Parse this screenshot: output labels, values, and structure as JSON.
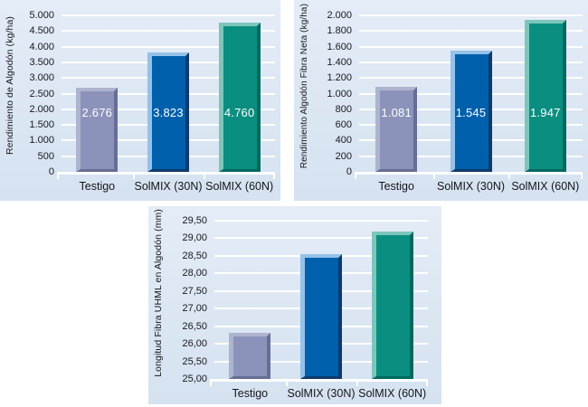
{
  "page": {
    "background": "#ffffff"
  },
  "palette": {
    "panel_bg_top": "#e4ecf7",
    "panel_bg_bottom": "#d5e2f0",
    "gridline": "#ffffff",
    "axis": "#ffffff",
    "text": "#17171f",
    "value_label_text": "#ffffff",
    "bar_colors": [
      {
        "series": "Testigo",
        "main": "#8b93ba",
        "light": "#aeb4cf",
        "dark": "#666e95"
      },
      {
        "series": "SolMIX (30N)",
        "main": "#0060ac",
        "light": "#94c2e9",
        "dark": "#0e3a6c"
      },
      {
        "series": "SolMIX (60N)",
        "main": "#0a8e80",
        "light": "#7cc6bc",
        "dark": "#00695e"
      }
    ]
  },
  "chart_data": [
    {
      "type": "bar",
      "title": "",
      "ylabel": "Rendimiento de Algodón (kg/ha)",
      "xlabel": "",
      "categories": [
        "Testigo",
        "SolMIX (30N)",
        "SolMIX (60N)"
      ],
      "values": [
        2676,
        3823,
        4760
      ],
      "value_labels": [
        "2.676",
        "3.823",
        "4.760"
      ],
      "show_value_labels": true,
      "ylim": [
        0,
        5000
      ],
      "ytick_labels": [
        "5.000",
        "4.500",
        "4.000",
        "3.500",
        "3.000",
        "2.500",
        "2.000",
        "1.500",
        "1.000",
        "500",
        "0"
      ],
      "grid": true,
      "legend": "none"
    },
    {
      "type": "bar",
      "title": "",
      "ylabel": "Rendimiento Algodón Fibra Neta (kg/ha)",
      "xlabel": "",
      "categories": [
        "Testigo",
        "SolMIX (30N)",
        "SolMIX (60N)"
      ],
      "values": [
        1081,
        1545,
        1947
      ],
      "value_labels": [
        "1.081",
        "1.545",
        "1.947"
      ],
      "show_value_labels": true,
      "ylim": [
        0,
        2000
      ],
      "ytick_labels": [
        "2.000",
        "1.800",
        "1.600",
        "1.400",
        "1.200",
        "1.000",
        "800",
        "600",
        "400",
        "200",
        "0"
      ],
      "grid": true,
      "legend": "none"
    },
    {
      "type": "bar",
      "title": "",
      "ylabel": "Longitud Fibra UHML en Algodón (mm)",
      "xlabel": "",
      "categories": [
        "Testigo",
        "SolMIX (30N)",
        "SolMIX (60N)"
      ],
      "values": [
        26.3,
        28.55,
        29.2
      ],
      "value_labels": [],
      "show_value_labels": false,
      "ylim": [
        25,
        29.5
      ],
      "ytick_labels": [
        "29,50",
        "29,00",
        "28,50",
        "28,00",
        "27,50",
        "27,00",
        "26,50",
        "26,00",
        "25,50",
        "25,00"
      ],
      "grid": true,
      "legend": "none"
    }
  ]
}
